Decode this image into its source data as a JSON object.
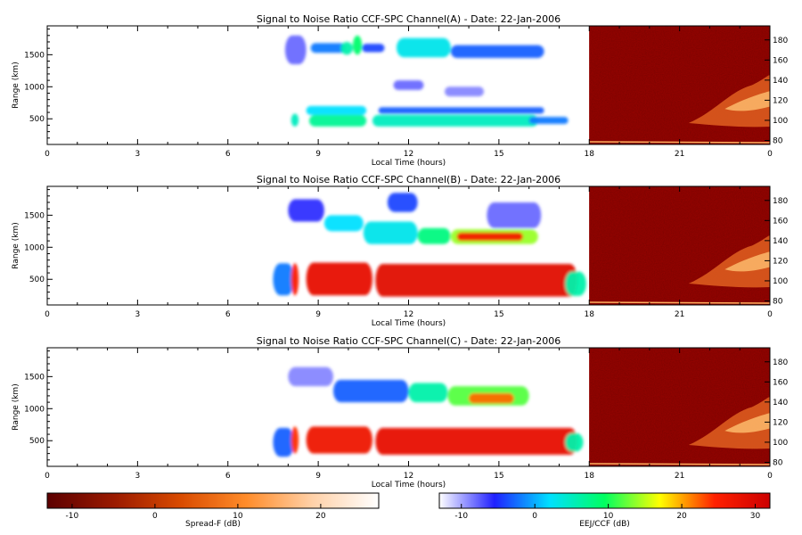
{
  "chart_data": {
    "type": "heatmap",
    "panels": [
      {
        "title": "Signal to Noise Ratio CCF-SPC Channel(A) - Date: 22-Jan-2006",
        "xlabel": "Local Time (hours)",
        "ylabel": "Range (km)",
        "x_ticks": [
          "0",
          "3",
          "6",
          "9",
          "12",
          "15",
          "18",
          "21",
          "0"
        ],
        "y_ticks": [
          "500",
          "1000",
          "1500"
        ],
        "right_ticks": [
          "80",
          "100",
          "120",
          "140",
          "160",
          "180"
        ],
        "xlim": [
          0,
          24
        ],
        "ylim": [
          100,
          1950
        ],
        "right_ylim": [
          76,
          194
        ],
        "blobs": [
          {
            "t0": 7.9,
            "t1": 8.6,
            "r0": 1350,
            "r1": 1800,
            "snr": -8
          },
          {
            "t0": 8.75,
            "t1": 9.9,
            "r0": 1530,
            "r1": 1680,
            "snr": -2
          },
          {
            "t0": 9.75,
            "t1": 10.15,
            "r0": 1500,
            "r1": 1700,
            "snr": 6
          },
          {
            "t0": 10.15,
            "t1": 10.45,
            "r0": 1500,
            "r1": 1800,
            "snr": 9
          },
          {
            "t0": 10.45,
            "t1": 11.2,
            "r0": 1540,
            "r1": 1670,
            "snr": -4
          },
          {
            "t0": 11.6,
            "t1": 13.4,
            "r0": 1460,
            "r1": 1760,
            "snr": 3
          },
          {
            "t0": 13.4,
            "t1": 16.5,
            "r0": 1450,
            "r1": 1650,
            "snr": -3
          },
          {
            "t0": 11.5,
            "t1": 12.5,
            "r0": 950,
            "r1": 1100,
            "snr": -8
          },
          {
            "t0": 13.2,
            "t1": 14.5,
            "r0": 850,
            "r1": 1000,
            "snr": -9
          },
          {
            "t0": 8.6,
            "t1": 10.6,
            "r0": 560,
            "r1": 700,
            "snr": 2
          },
          {
            "t0": 11.0,
            "t1": 16.5,
            "r0": 580,
            "r1": 680,
            "snr": -3
          },
          {
            "t0": 8.1,
            "t1": 8.35,
            "r0": 380,
            "r1": 580,
            "snr": 5
          },
          {
            "t0": 8.7,
            "t1": 10.6,
            "r0": 380,
            "r1": 560,
            "snr": 7
          },
          {
            "t0": 10.8,
            "t1": 16.3,
            "r0": 380,
            "r1": 560,
            "snr": 5
          },
          {
            "t0": 16.0,
            "t1": 17.3,
            "r0": 420,
            "r1": 530,
            "snr": -2
          }
        ]
      },
      {
        "title": "Signal to Noise Ratio CCF-SPC Channel(B) - Date: 22-Jan-2006",
        "xlabel": "Local Time (hours)",
        "ylabel": "Range (km)",
        "x_ticks": [
          "0",
          "3",
          "6",
          "9",
          "12",
          "15",
          "18",
          "21",
          "0"
        ],
        "y_ticks": [
          "500",
          "1000",
          "1500"
        ],
        "right_ticks": [
          "80",
          "100",
          "120",
          "140",
          "160",
          "180"
        ],
        "xlim": [
          0,
          24
        ],
        "ylim": [
          100,
          1950
        ],
        "right_ylim": [
          76,
          194
        ],
        "blobs": [
          {
            "t0": 8.0,
            "t1": 9.2,
            "r0": 1400,
            "r1": 1750,
            "snr": -6
          },
          {
            "t0": 9.2,
            "t1": 10.5,
            "r0": 1250,
            "r1": 1500,
            "snr": 2
          },
          {
            "t0": 10.5,
            "t1": 12.3,
            "r0": 1050,
            "r1": 1400,
            "snr": 3
          },
          {
            "t0": 11.3,
            "t1": 12.3,
            "r0": 1550,
            "r1": 1850,
            "snr": -4
          },
          {
            "t0": 12.3,
            "t1": 13.4,
            "r0": 1050,
            "r1": 1300,
            "snr": 8
          },
          {
            "t0": 13.4,
            "t1": 16.3,
            "r0": 1050,
            "r1": 1280,
            "snr": 14
          },
          {
            "t0": 13.6,
            "t1": 15.8,
            "r0": 1100,
            "r1": 1230,
            "snr": 26
          },
          {
            "t0": 14.6,
            "t1": 16.4,
            "r0": 1300,
            "r1": 1700,
            "snr": -8
          },
          {
            "t0": 7.5,
            "t1": 8.2,
            "r0": 250,
            "r1": 750,
            "snr": -2
          },
          {
            "t0": 8.1,
            "t1": 8.35,
            "r0": 250,
            "r1": 750,
            "snr": 25
          },
          {
            "t0": 8.6,
            "t1": 10.8,
            "r0": 250,
            "r1": 760,
            "snr": 28
          },
          {
            "t0": 10.9,
            "t1": 17.6,
            "r0": 230,
            "r1": 740,
            "snr": 29
          },
          {
            "t0": 17.2,
            "t1": 17.9,
            "r0": 240,
            "r1": 620,
            "snr": 6
          }
        ]
      },
      {
        "title": "Signal to Noise Ratio CCF-SPC Channel(C) - Date: 22-Jan-2006",
        "xlabel": "Local Time (hours)",
        "ylabel": "Range (km)",
        "x_ticks": [
          "0",
          "3",
          "6",
          "9",
          "12",
          "15",
          "18",
          "21",
          "0"
        ],
        "y_ticks": [
          "500",
          "1000",
          "1500"
        ],
        "right_ticks": [
          "80",
          "100",
          "120",
          "140",
          "160",
          "180"
        ],
        "xlim": [
          0,
          24
        ],
        "ylim": [
          100,
          1950
        ],
        "right_ylim": [
          76,
          194
        ],
        "blobs": [
          {
            "t0": 8.0,
            "t1": 9.5,
            "r0": 1350,
            "r1": 1650,
            "snr": -9
          },
          {
            "t0": 9.5,
            "t1": 12.0,
            "r0": 1100,
            "r1": 1450,
            "snr": -3
          },
          {
            "t0": 12.0,
            "t1": 13.3,
            "r0": 1100,
            "r1": 1400,
            "snr": 6
          },
          {
            "t0": 13.3,
            "t1": 16.0,
            "r0": 1050,
            "r1": 1350,
            "snr": 12
          },
          {
            "t0": 14.0,
            "t1": 15.5,
            "r0": 1080,
            "r1": 1240,
            "snr": 22
          },
          {
            "t0": 7.5,
            "t1": 8.2,
            "r0": 250,
            "r1": 700,
            "snr": -3
          },
          {
            "t0": 8.1,
            "t1": 8.35,
            "r0": 300,
            "r1": 720,
            "snr": 24
          },
          {
            "t0": 8.6,
            "t1": 10.8,
            "r0": 300,
            "r1": 720,
            "snr": 27
          },
          {
            "t0": 10.9,
            "t1": 17.6,
            "r0": 280,
            "r1": 700,
            "snr": 28
          },
          {
            "t0": 17.2,
            "t1": 17.8,
            "r0": 330,
            "r1": 620,
            "snr": 6
          }
        ]
      }
    ],
    "colorbars": [
      {
        "label": "Spread-F (dB)",
        "ticks": [
          "-10",
          "0",
          "10",
          "20"
        ],
        "range": [
          -13,
          27
        ],
        "colors": [
          "#5c0000",
          "#9a1a00",
          "#d84a00",
          "#ff8c2a",
          "#ffd1a8",
          "#ffffff"
        ]
      },
      {
        "label": "EEJ/CCF (dB)",
        "ticks": [
          "-10",
          "0",
          "10",
          "20",
          "30"
        ],
        "range": [
          -13,
          32
        ],
        "colors": [
          "#ffffff",
          "#2020ff",
          "#00e0ff",
          "#00ff60",
          "#ffff00",
          "#ff2000",
          "#cc0000"
        ]
      }
    ]
  }
}
